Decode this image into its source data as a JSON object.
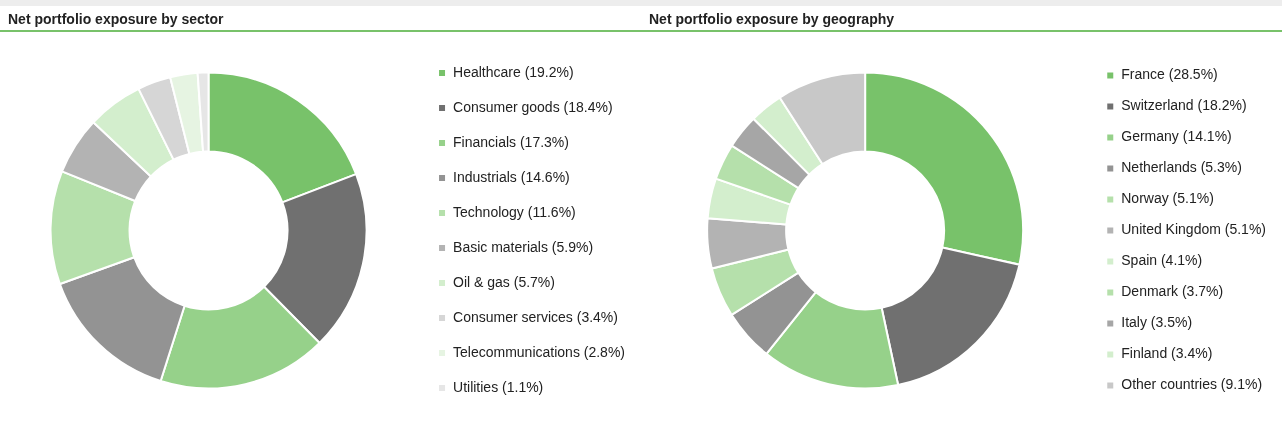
{
  "chart_data": [
    {
      "type": "donut",
      "title": "Net portfolio exposure by sector",
      "legend": "right",
      "categories": [
        "Healthcare (19.2%)",
        "Consumer goods (18.4%)",
        "Financials (17.3%)",
        "Industrials (14.6%)",
        "Technology (11.6%)",
        "Basic materials (5.9%)",
        "Oil & gas (5.7%)",
        "Consumer services (3.4%)",
        "Telecommunications (2.8%)",
        "Utilities (1.1%)"
      ],
      "values": [
        19.2,
        18.4,
        17.3,
        14.6,
        11.6,
        5.9,
        5.7,
        3.4,
        2.8,
        1.1
      ],
      "colors": [
        "#78c26a",
        "#707070",
        "#96d18a",
        "#939393",
        "#b5e0ab",
        "#b3b3b3",
        "#d3eecd",
        "#d6d6d6",
        "#e6f4e2",
        "#e6e6e6"
      ]
    },
    {
      "type": "donut",
      "title": "Net portfolio exposure by geography",
      "legend": "right",
      "categories": [
        "France (28.5%)",
        "Switzerland (18.2%)",
        "Germany (14.1%)",
        "Netherlands (5.3%)",
        "Norway (5.1%)",
        "United Kingdom (5.1%)",
        "Spain (4.1%)",
        "Denmark (3.7%)",
        "Italy (3.5%)",
        "Finland (3.4%)",
        "Other countries (9.1%)"
      ],
      "values": [
        28.5,
        18.2,
        14.1,
        5.3,
        5.1,
        5.1,
        4.1,
        3.7,
        3.5,
        3.4,
        9.1
      ],
      "colors": [
        "#78c26a",
        "#707070",
        "#96d18a",
        "#939393",
        "#b5e0ab",
        "#b3b3b3",
        "#d3eecd",
        "#b5e0ab",
        "#a6a6a6",
        "#d3eecd",
        "#c8c8c8"
      ]
    }
  ]
}
